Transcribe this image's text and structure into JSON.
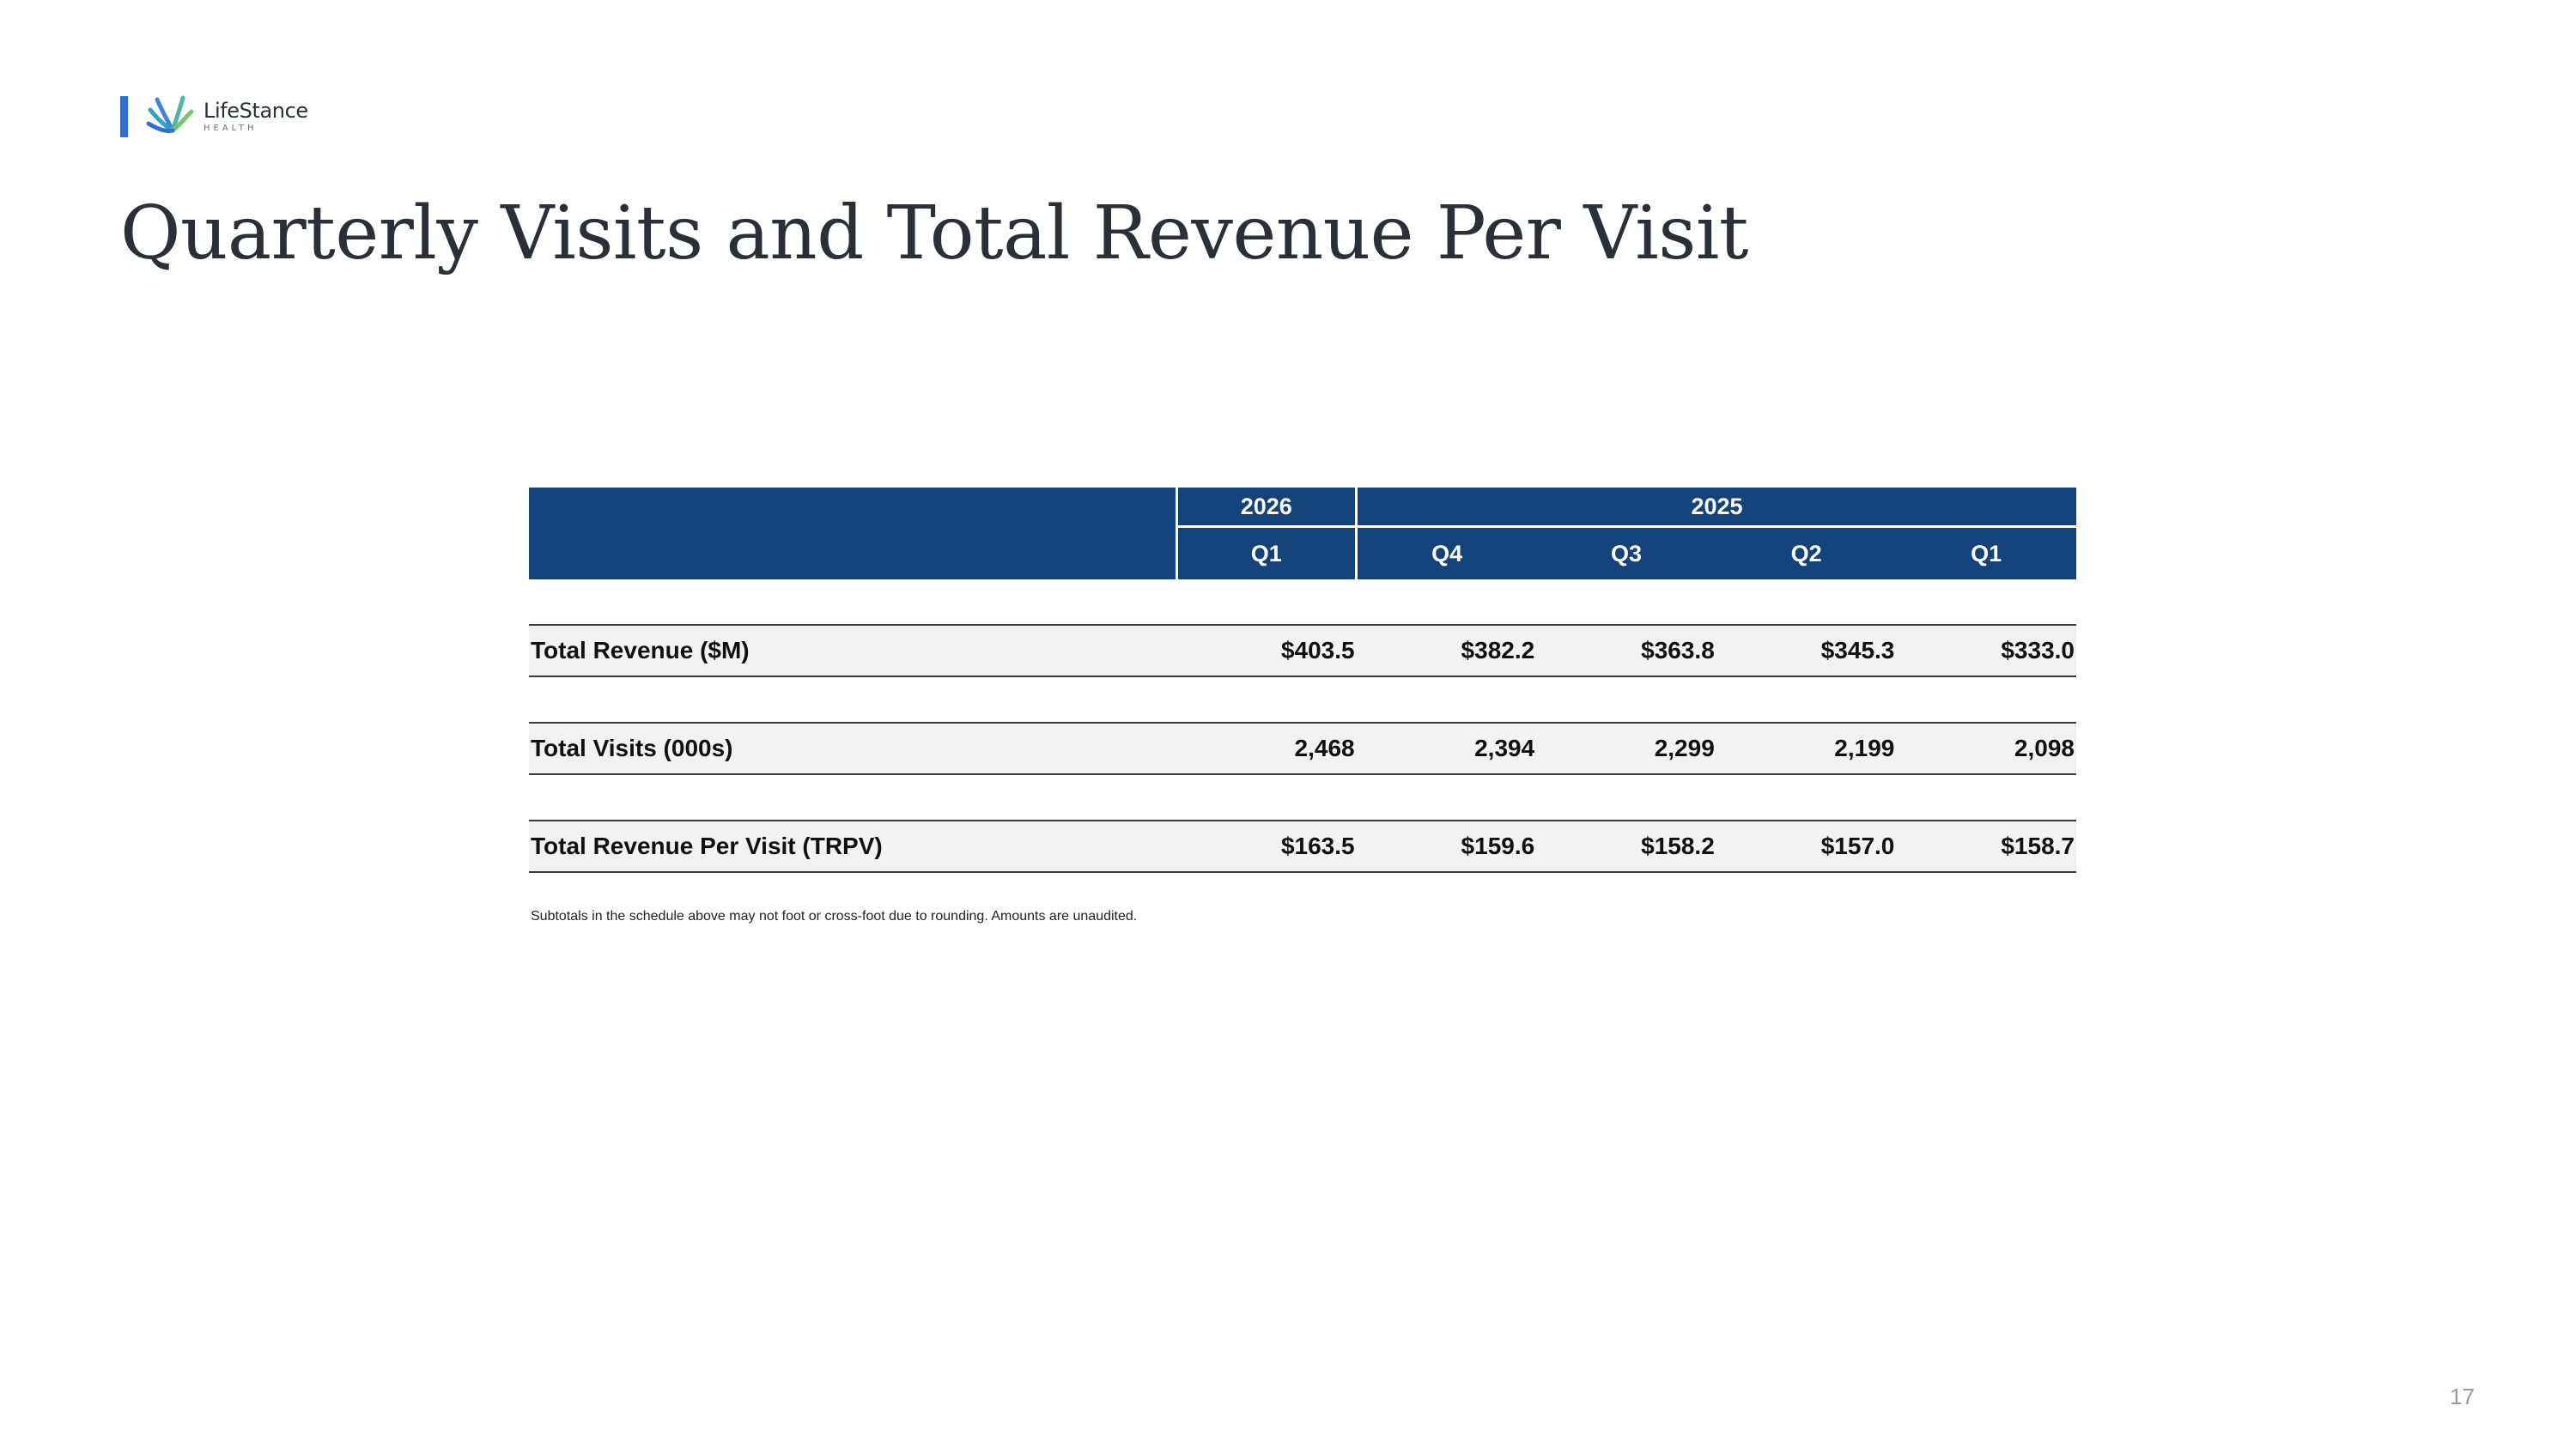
{
  "logo": {
    "name": "LifeStance",
    "sub": "HEALTH"
  },
  "page": {
    "title": "Quarterly Visits and Total Revenue Per Visit",
    "page_number": "17"
  },
  "table": {
    "years": [
      {
        "label": "2026",
        "span": 1
      },
      {
        "label": "2025",
        "span": 4
      }
    ],
    "quarters": [
      "Q1",
      "Q4",
      "Q3",
      "Q2",
      "Q1"
    ],
    "rows": [
      {
        "label": "Total Revenue ($M)",
        "values": [
          "$403.5",
          "$382.2",
          "$363.8",
          "$345.3",
          "$333.0"
        ]
      },
      {
        "label": "Total Visits (000s)",
        "values": [
          "2,468",
          "2,394",
          "2,299",
          "2,199",
          "2,098"
        ]
      },
      {
        "label": "Total Revenue Per Visit (TRPV)",
        "values": [
          "$163.5",
          "$159.6",
          "$158.2",
          "$157.0",
          "$158.7"
        ]
      }
    ],
    "footnote": "Subtotals in the schedule above may not foot or cross-foot due to rounding. Amounts are unaudited."
  },
  "colors": {
    "header_bg": "#14427a",
    "row_bg": "#f2f2f2",
    "logo_bar": "#2f6fd0"
  }
}
